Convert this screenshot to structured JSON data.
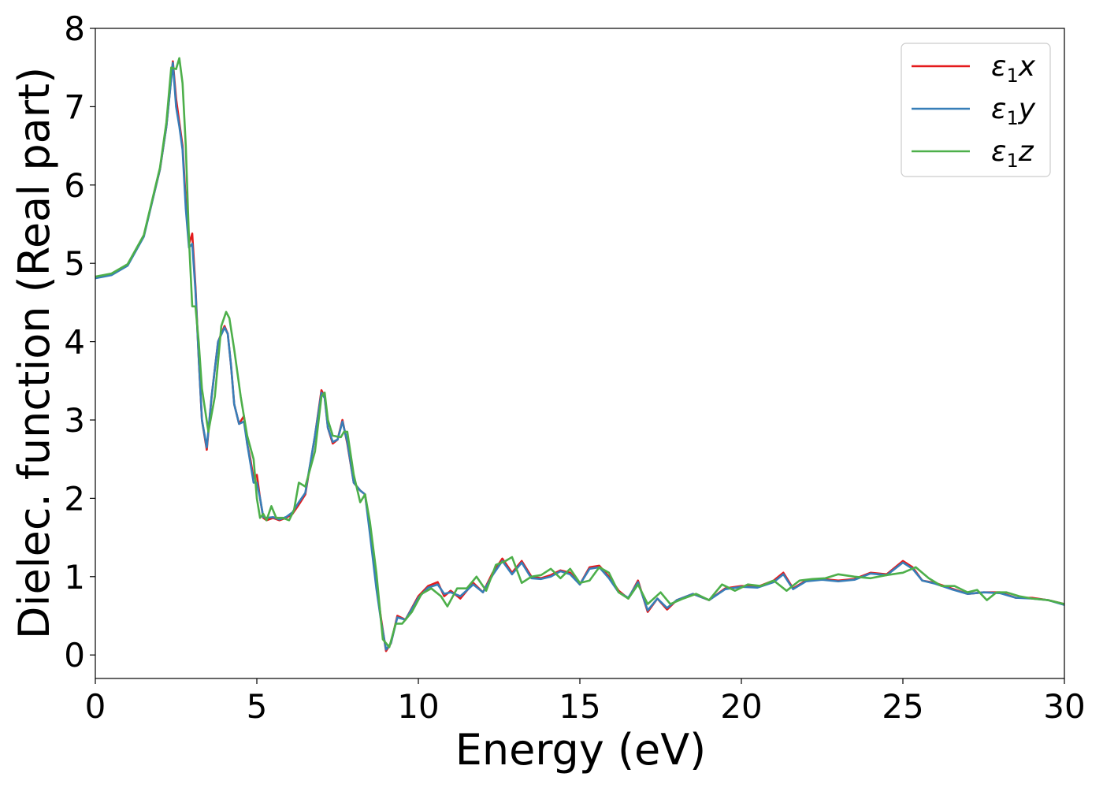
{
  "chart_data": {
    "type": "line",
    "title": "",
    "xlabel": "Energy (eV)",
    "ylabel": "Dielec. function (Real part)",
    "xlim": [
      0,
      30
    ],
    "ylim": [
      -0.3,
      8
    ],
    "xticks": [
      0,
      5,
      10,
      15,
      20,
      25,
      30
    ],
    "yticks": [
      0,
      1,
      2,
      3,
      4,
      5,
      6,
      7,
      8
    ],
    "xtick_labels": [
      "0",
      "5",
      "10",
      "15",
      "20",
      "25",
      "30"
    ],
    "ytick_labels": [
      "0",
      "1",
      "2",
      "3",
      "4",
      "5",
      "6",
      "7",
      "8"
    ],
    "grid": false,
    "legend_position": "top-right",
    "series": [
      {
        "name": "ε₁x",
        "legend_base": "ε",
        "legend_sub": "1",
        "legend_suffix": "x",
        "color": "#e41a1c",
        "x": [
          0,
          0.5,
          1.0,
          1.5,
          2.0,
          2.2,
          2.4,
          2.5,
          2.6,
          2.7,
          2.8,
          2.9,
          3.0,
          3.1,
          3.2,
          3.3,
          3.45,
          3.6,
          3.8,
          4.0,
          4.1,
          4.2,
          4.3,
          4.45,
          4.6,
          4.7,
          4.8,
          4.9,
          5.0,
          5.1,
          5.2,
          5.3,
          5.5,
          5.7,
          5.9,
          6.1,
          6.3,
          6.5,
          6.8,
          7.0,
          7.1,
          7.2,
          7.35,
          7.5,
          7.65,
          7.8,
          8.0,
          8.2,
          8.35,
          8.5,
          8.7,
          8.85,
          9.0,
          9.15,
          9.35,
          9.6,
          10.0,
          10.3,
          10.6,
          10.8,
          11.0,
          11.3,
          11.7,
          12.0,
          12.3,
          12.6,
          12.9,
          13.2,
          13.5,
          13.8,
          14.1,
          14.4,
          14.7,
          15.0,
          15.3,
          15.6,
          15.9,
          16.2,
          16.5,
          16.8,
          17.1,
          17.4,
          17.7,
          18.0,
          18.5,
          19.0,
          19.5,
          20.0,
          20.5,
          21.0,
          21.3,
          21.6,
          22.0,
          22.5,
          23.0,
          23.5,
          24.0,
          24.5,
          25.0,
          25.3,
          25.6,
          26.0,
          26.5,
          27.0,
          27.5,
          28.0,
          28.5,
          29.0,
          29.5,
          30.0
        ],
        "y": [
          4.82,
          4.86,
          4.98,
          5.35,
          6.2,
          6.75,
          7.58,
          7.1,
          6.8,
          6.5,
          5.8,
          5.25,
          5.38,
          4.7,
          3.8,
          3.0,
          2.62,
          3.3,
          4.0,
          4.2,
          4.1,
          3.7,
          3.2,
          2.95,
          3.05,
          2.7,
          2.5,
          2.25,
          2.3,
          2.0,
          1.75,
          1.72,
          1.75,
          1.72,
          1.75,
          1.8,
          1.92,
          2.05,
          2.8,
          3.38,
          3.3,
          2.9,
          2.7,
          2.75,
          3.0,
          2.7,
          2.2,
          2.1,
          2.05,
          1.6,
          0.9,
          0.45,
          0.05,
          0.15,
          0.5,
          0.45,
          0.75,
          0.88,
          0.93,
          0.75,
          0.82,
          0.72,
          0.92,
          0.8,
          1.05,
          1.23,
          1.05,
          1.2,
          1.0,
          0.98,
          1.02,
          1.08,
          1.05,
          0.9,
          1.12,
          1.14,
          1.0,
          0.82,
          0.72,
          0.95,
          0.55,
          0.72,
          0.58,
          0.7,
          0.78,
          0.7,
          0.85,
          0.88,
          0.87,
          0.95,
          1.05,
          0.85,
          0.95,
          0.97,
          0.95,
          0.97,
          1.05,
          1.03,
          1.2,
          1.12,
          0.95,
          0.92,
          0.85,
          0.78,
          0.8,
          0.8,
          0.73,
          0.73,
          0.7,
          0.65
        ]
      },
      {
        "name": "ε₁y",
        "legend_base": "ε",
        "legend_sub": "1",
        "legend_suffix": "y",
        "color": "#377eb8",
        "x": [
          0,
          0.5,
          1.0,
          1.5,
          2.0,
          2.2,
          2.4,
          2.5,
          2.6,
          2.7,
          2.8,
          2.9,
          3.0,
          3.1,
          3.2,
          3.3,
          3.45,
          3.6,
          3.8,
          4.0,
          4.1,
          4.2,
          4.3,
          4.45,
          4.6,
          4.7,
          4.8,
          4.9,
          5.0,
          5.1,
          5.2,
          5.3,
          5.5,
          5.7,
          5.9,
          6.1,
          6.3,
          6.5,
          6.8,
          7.0,
          7.1,
          7.2,
          7.35,
          7.5,
          7.65,
          7.8,
          8.0,
          8.2,
          8.35,
          8.5,
          8.7,
          8.85,
          9.0,
          9.15,
          9.35,
          9.6,
          10.0,
          10.3,
          10.6,
          10.8,
          11.0,
          11.3,
          11.7,
          12.0,
          12.3,
          12.6,
          12.9,
          13.2,
          13.5,
          13.8,
          14.1,
          14.4,
          14.7,
          15.0,
          15.3,
          15.6,
          15.9,
          16.2,
          16.5,
          16.8,
          17.1,
          17.4,
          17.7,
          18.0,
          18.5,
          19.0,
          19.5,
          20.0,
          20.5,
          21.0,
          21.3,
          21.6,
          22.0,
          22.5,
          23.0,
          23.5,
          24.0,
          24.5,
          25.0,
          25.3,
          25.6,
          26.0,
          26.5,
          27.0,
          27.5,
          28.0,
          28.5,
          29.0,
          29.5,
          30.0
        ],
        "y": [
          4.81,
          4.85,
          4.97,
          5.34,
          6.2,
          6.75,
          7.56,
          7.0,
          6.75,
          6.45,
          5.7,
          5.2,
          5.25,
          4.65,
          3.8,
          3.0,
          2.65,
          3.3,
          4.0,
          4.18,
          4.1,
          3.7,
          3.2,
          2.95,
          2.98,
          2.7,
          2.45,
          2.2,
          2.2,
          2.0,
          1.76,
          1.75,
          1.76,
          1.73,
          1.76,
          1.82,
          1.95,
          2.07,
          2.8,
          3.35,
          3.28,
          2.9,
          2.72,
          2.75,
          2.98,
          2.72,
          2.2,
          2.1,
          2.05,
          1.55,
          0.85,
          0.42,
          0.07,
          0.15,
          0.48,
          0.45,
          0.73,
          0.86,
          0.9,
          0.78,
          0.8,
          0.75,
          0.9,
          0.8,
          1.02,
          1.2,
          1.03,
          1.18,
          0.98,
          0.97,
          1.0,
          1.07,
          1.03,
          0.9,
          1.1,
          1.12,
          0.98,
          0.8,
          0.73,
          0.93,
          0.57,
          0.72,
          0.6,
          0.7,
          0.78,
          0.7,
          0.84,
          0.87,
          0.86,
          0.93,
          1.03,
          0.84,
          0.94,
          0.96,
          0.94,
          0.96,
          1.04,
          1.02,
          1.18,
          1.1,
          0.95,
          0.91,
          0.84,
          0.78,
          0.8,
          0.79,
          0.73,
          0.72,
          0.7,
          0.64
        ]
      },
      {
        "name": "ε₁z",
        "legend_base": "ε",
        "legend_sub": "1",
        "legend_suffix": "z",
        "color": "#4daf4a",
        "x": [
          0,
          0.5,
          1.0,
          1.5,
          2.0,
          2.2,
          2.35,
          2.5,
          2.6,
          2.7,
          2.8,
          2.9,
          3.0,
          3.1,
          3.2,
          3.3,
          3.5,
          3.7,
          3.9,
          4.05,
          4.15,
          4.3,
          4.5,
          4.7,
          4.9,
          5.0,
          5.1,
          5.2,
          5.3,
          5.45,
          5.6,
          5.8,
          6.0,
          6.15,
          6.3,
          6.5,
          6.8,
          7.0,
          7.1,
          7.2,
          7.35,
          7.6,
          7.7,
          7.8,
          8.0,
          8.2,
          8.35,
          8.5,
          8.7,
          8.9,
          9.1,
          9.3,
          9.5,
          9.8,
          10.1,
          10.4,
          10.7,
          10.9,
          11.2,
          11.5,
          11.8,
          12.1,
          12.4,
          12.7,
          12.9,
          13.2,
          13.5,
          13.8,
          14.1,
          14.4,
          14.7,
          15.0,
          15.3,
          15.6,
          15.9,
          16.2,
          16.5,
          16.8,
          17.1,
          17.5,
          17.8,
          18.2,
          18.6,
          19.0,
          19.4,
          19.8,
          20.2,
          20.6,
          21.0,
          21.4,
          21.8,
          22.2,
          22.6,
          23.0,
          23.5,
          24.0,
          24.5,
          25.0,
          25.4,
          25.8,
          26.2,
          26.6,
          27.0,
          27.3,
          27.6,
          27.9,
          28.2,
          28.6,
          29.0,
          29.5,
          30.0
        ],
        "y": [
          4.83,
          4.87,
          4.99,
          5.36,
          6.22,
          6.8,
          7.5,
          7.48,
          7.62,
          7.3,
          6.5,
          5.3,
          4.45,
          4.45,
          4.0,
          3.4,
          2.85,
          3.3,
          4.2,
          4.38,
          4.3,
          3.9,
          3.3,
          2.8,
          2.5,
          2.0,
          1.75,
          1.8,
          1.72,
          1.9,
          1.75,
          1.75,
          1.72,
          1.85,
          2.2,
          2.15,
          2.6,
          3.3,
          3.35,
          3.0,
          2.8,
          2.78,
          2.85,
          2.85,
          2.3,
          1.95,
          2.05,
          1.7,
          1.05,
          0.2,
          0.1,
          0.4,
          0.4,
          0.55,
          0.78,
          0.85,
          0.75,
          0.62,
          0.85,
          0.85,
          1.0,
          0.82,
          1.15,
          1.2,
          1.25,
          0.92,
          1.0,
          1.02,
          1.1,
          0.98,
          1.1,
          0.92,
          0.95,
          1.12,
          1.05,
          0.8,
          0.72,
          0.9,
          0.65,
          0.8,
          0.65,
          0.72,
          0.78,
          0.7,
          0.9,
          0.82,
          0.9,
          0.88,
          0.95,
          0.82,
          0.95,
          0.97,
          0.98,
          1.03,
          1.0,
          0.98,
          1.02,
          1.05,
          1.12,
          0.98,
          0.88,
          0.88,
          0.8,
          0.83,
          0.7,
          0.8,
          0.8,
          0.75,
          0.72,
          0.7,
          0.65
        ]
      }
    ]
  }
}
